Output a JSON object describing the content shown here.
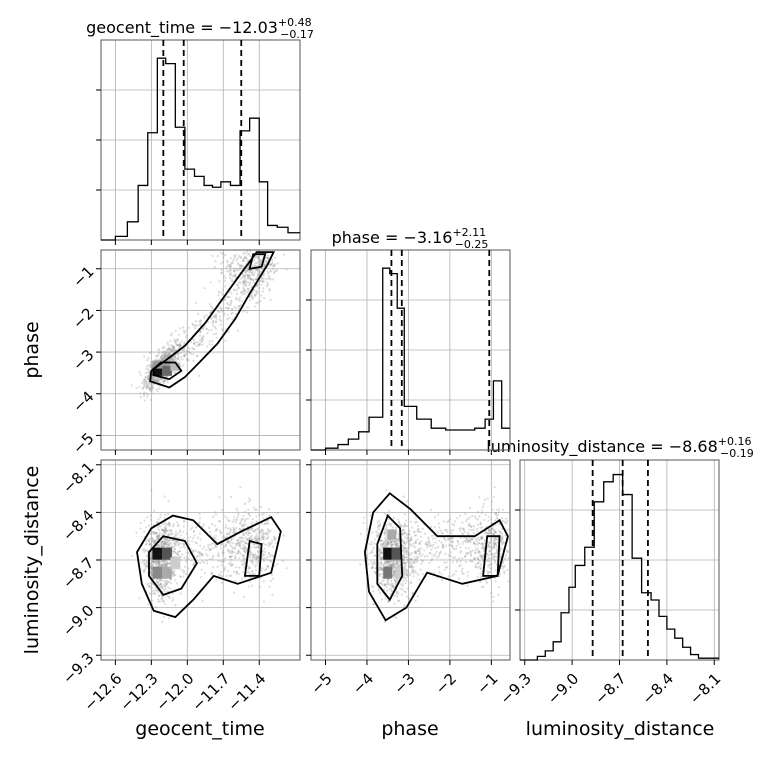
{
  "chart_data": {
    "type": "corner",
    "parameters": [
      "geocent_time",
      "phase",
      "luminosity_distance"
    ],
    "titles": [
      {
        "param": "geocent_time",
        "prefix": "geocent_time = ",
        "median": "−12.03",
        "plus": "+0.48",
        "minus": "−0.17"
      },
      {
        "param": "phase",
        "prefix": "phase = ",
        "median": "−3.16",
        "plus": "+2.11",
        "minus": "−0.25"
      },
      {
        "param": "luminosity_distance",
        "prefix": "luminosity_distance = ",
        "median": "−8.68",
        "plus": "+0.16",
        "minus": "−0.19"
      }
    ],
    "axis_labels": {
      "x": [
        "geocent_time",
        "phase",
        "luminosity_distance"
      ],
      "y": [
        "phase",
        "luminosity_distance"
      ]
    },
    "ranges": {
      "geocent_time": [
        -12.72,
        -11.06
      ],
      "phase": [
        -5.35,
        -0.55
      ],
      "luminosity_distance": [
        -9.33,
        -8.07
      ]
    },
    "ticks": {
      "geocent_time": {
        "values": [
          -12.6,
          -12.3,
          -12.0,
          -11.7,
          -11.4
        ],
        "labels": [
          "−12.6",
          "−12.3",
          "−12.0",
          "−11.7",
          "−11.4"
        ]
      },
      "phase": {
        "values": [
          -5,
          -4,
          -3,
          -2,
          -1
        ],
        "labels": [
          "−5",
          "−4",
          "−3",
          "−2",
          "−1"
        ]
      },
      "luminosity_distance": {
        "values": [
          -9.3,
          -9.0,
          -8.7,
          -8.4,
          -8.1
        ],
        "labels": [
          "−9.3",
          "−9.0",
          "−8.7",
          "−8.4",
          "−8.1"
        ]
      }
    },
    "histograms": {
      "geocent_time": {
        "edges": [
          -12.72,
          -12.6,
          -12.5,
          -12.41,
          -12.33,
          -12.25,
          -12.18,
          -12.1,
          -12.02,
          -11.94,
          -11.86,
          -11.79,
          -11.72,
          -11.64,
          -11.56,
          -11.48,
          -11.4,
          -11.33,
          -11.25,
          -11.16,
          -11.06
        ],
        "counts": [
          0.0,
          0.02,
          0.1,
          0.3,
          0.59,
          1.0,
          0.97,
          0.62,
          0.39,
          0.35,
          0.3,
          0.29,
          0.32,
          0.3,
          0.6,
          0.67,
          0.32,
          0.08,
          0.07,
          0.04
        ]
      },
      "phase": {
        "edges": [
          -5.35,
          -5.0,
          -4.7,
          -4.45,
          -4.2,
          -3.95,
          -3.62,
          -3.45,
          -3.27,
          -3.1,
          -2.8,
          -2.45,
          -2.1,
          -1.75,
          -1.4,
          -1.15,
          -0.95,
          -0.75,
          -0.55
        ],
        "counts": [
          0.0,
          0.01,
          0.03,
          0.06,
          0.1,
          0.18,
          1.0,
          0.97,
          0.78,
          0.24,
          0.17,
          0.12,
          0.11,
          0.11,
          0.12,
          0.17,
          0.38,
          0.12
        ]
      },
      "luminosity_distance": {
        "edges": [
          -9.33,
          -9.22,
          -9.17,
          -9.12,
          -9.07,
          -9.02,
          -8.98,
          -8.92,
          -8.86,
          -8.8,
          -8.74,
          -8.68,
          -8.62,
          -8.56,
          -8.5,
          -8.45,
          -8.4,
          -8.35,
          -8.3,
          -8.25,
          -8.2,
          -8.07
        ],
        "counts": [
          0.0,
          0.02,
          0.05,
          0.1,
          0.26,
          0.4,
          0.52,
          0.62,
          0.87,
          0.98,
          1.02,
          0.91,
          0.56,
          0.37,
          0.33,
          0.24,
          0.17,
          0.12,
          0.07,
          0.03,
          0.01
        ]
      }
    },
    "quantiles": {
      "geocent_time": [
        -12.2,
        -12.03,
        -11.55
      ],
      "phase": [
        -3.41,
        -3.16,
        -1.05
      ],
      "luminosity_distance": [
        -8.87,
        -8.68,
        -8.52
      ]
    }
  }
}
